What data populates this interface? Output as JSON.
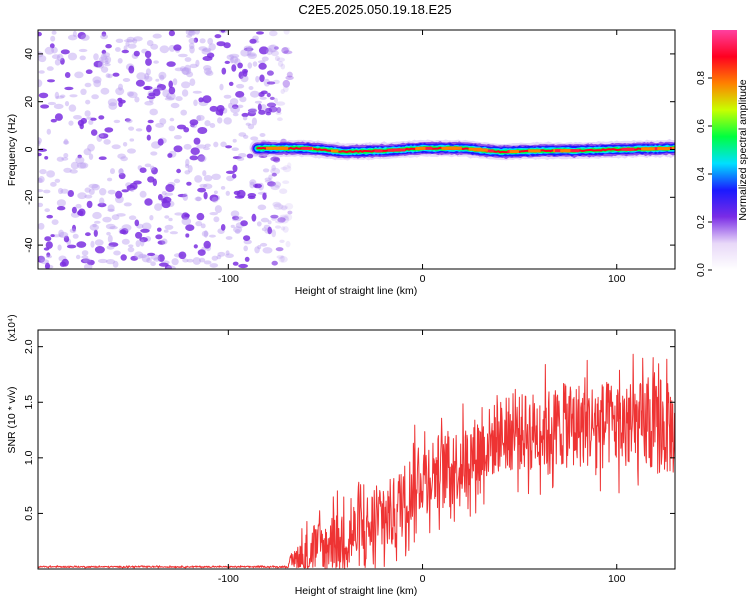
{
  "page_title": "C2E5.2025.050.19.18.E25",
  "chart_data": [
    {
      "type": "heatmap",
      "id": "spectrogram",
      "xlabel": "Height of straight line (km)",
      "ylabel": "Frequency (Hz)",
      "xlim": [
        -198,
        130
      ],
      "ylim": [
        -50,
        50
      ],
      "xticks": [
        -100,
        0,
        100
      ],
      "yticks": [
        -40,
        -20,
        0,
        20,
        40
      ],
      "xtick_labels": [
        "-100",
        "0",
        "100"
      ],
      "ytick_labels": [
        "-40",
        "-20",
        "0",
        "20",
        "40"
      ],
      "noise_region": {
        "x_from": -198,
        "x_to": -68,
        "freq_range": [
          -50,
          50
        ],
        "dominant_color": "#7b2fe0"
      },
      "signal_band": [
        {
          "x": -85,
          "freq": 0.5
        },
        {
          "x": -60,
          "freq": 0.5
        },
        {
          "x": -40,
          "freq": -1.0
        },
        {
          "x": -20,
          "freq": -0.5
        },
        {
          "x": 0,
          "freq": 0.5
        },
        {
          "x": 20,
          "freq": 0.5
        },
        {
          "x": 40,
          "freq": -1.0
        },
        {
          "x": 60,
          "freq": -0.5
        },
        {
          "x": 80,
          "freq": -0.5
        },
        {
          "x": 100,
          "freq": 0.0
        },
        {
          "x": 130,
          "freq": 0.5
        }
      ],
      "colorbar": {
        "label": "Normalized spectral amplitude",
        "range": [
          0,
          1
        ],
        "ticks": [
          0.0,
          0.2,
          0.4,
          0.6,
          0.8
        ],
        "tick_labels": [
          "0.0",
          "0.2",
          "0.4",
          "0.6",
          "0.8"
        ],
        "colors": [
          "#ffffff",
          "#e8d8f8",
          "#7a2ce6",
          "#1a1aff",
          "#00e0ff",
          "#00ff40",
          "#c8ff00",
          "#ff8000",
          "#ff0020",
          "#ff40a0"
        ]
      }
    },
    {
      "type": "line",
      "id": "snr",
      "xlabel": "Height of straight line (km)",
      "ylabel": "SNR (10 * v/v)",
      "multiplier": "(x10⁴)",
      "xlim": [
        -198,
        130
      ],
      "ylim": [
        0,
        2.15
      ],
      "xticks": [
        -100,
        0,
        100
      ],
      "yticks": [
        0.5,
        1.0,
        1.5,
        2.0
      ],
      "xtick_labels": [
        "-100",
        "0",
        "100"
      ],
      "ytick_labels": [
        "0.5",
        "1.0",
        "1.5",
        "2.0"
      ],
      "line_color": "#ee3333",
      "envelope": [
        {
          "x": -198,
          "base": 0.02,
          "amp": 0.01
        },
        {
          "x": -70,
          "base": 0.02,
          "amp": 0.01
        },
        {
          "x": -60,
          "base": 0.15,
          "amp": 0.35
        },
        {
          "x": -45,
          "base": 0.25,
          "amp": 0.45
        },
        {
          "x": -30,
          "base": 0.35,
          "amp": 0.55
        },
        {
          "x": -15,
          "base": 0.5,
          "amp": 0.55
        },
        {
          "x": 0,
          "base": 0.85,
          "amp": 0.55
        },
        {
          "x": 20,
          "base": 0.95,
          "amp": 0.55
        },
        {
          "x": 40,
          "base": 1.2,
          "amp": 0.55
        },
        {
          "x": 60,
          "base": 1.25,
          "amp": 0.6
        },
        {
          "x": 80,
          "base": 1.3,
          "amp": 0.65
        },
        {
          "x": 100,
          "base": 1.3,
          "amp": 0.65
        },
        {
          "x": 130,
          "base": 1.25,
          "amp": 0.7
        }
      ]
    }
  ]
}
